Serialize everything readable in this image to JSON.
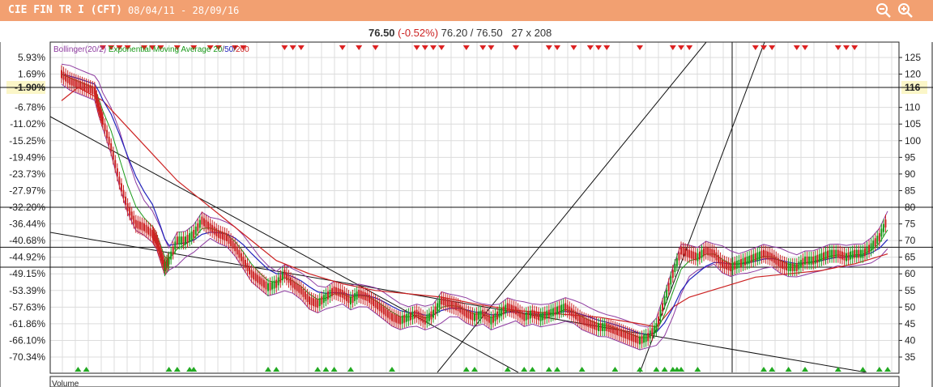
{
  "window": {
    "title": "CIE FIN TR I (CFT)",
    "date_range": "08/04/11 - 28/09/16",
    "zoom_out_icon": "zoom-out-icon",
    "zoom_in_icon": "zoom-in-icon"
  },
  "quote": {
    "last": "76.50",
    "change": "(-0.52%)",
    "bid_ask": "76.20 / 76.50",
    "size": "27 x 208"
  },
  "colors": {
    "titlebar": "#f2a071",
    "price_up": "#1a9a1a",
    "price_down": "#cc2222",
    "bollinger": "#8e3aa0",
    "ema20": "#1a9a1a",
    "ema50": "#2222bb",
    "ema200": "#cc2222",
    "up_marker": "#22aa22",
    "down_marker": "#dd2222"
  },
  "chart_data": {
    "type": "line",
    "legend": {
      "bollinger": "Bollinger(20/2)",
      "ema_prefix": "Exponential Moving Average",
      "ema_20": "20",
      "ema_50": "50",
      "ema_200": "200"
    },
    "y_right_ticks": [
      "125",
      "120",
      "116",
      "110",
      "105",
      "100",
      "95",
      "90",
      "85",
      "80",
      "75",
      "70",
      "65",
      "60",
      "55",
      "50",
      "45",
      "40",
      "35"
    ],
    "y_right_values": [
      125,
      120,
      116,
      110,
      105,
      100,
      95,
      90,
      85,
      80,
      75,
      70,
      65,
      60,
      55,
      50,
      45,
      40,
      35
    ],
    "y_right_highlight": "116",
    "y_left_ticks": [
      "5.93%",
      "1.69%",
      "-1.90%",
      "-6.78%",
      "-11.02%",
      "-15.25%",
      "-19.49%",
      "-23.73%",
      "-27.97%",
      "-32.20%",
      "-36.44%",
      "-40.68%",
      "-44.92%",
      "-49.15%",
      "-53.39%",
      "-57.63%",
      "-61.86%",
      "-66.10%",
      "-70.34%"
    ],
    "y_left_highlight": "-1.90%",
    "ylim": [
      30,
      130
    ],
    "horizontal_lines": [
      116,
      80,
      68,
      62
    ],
    "price_path": [
      [
        0,
        120
      ],
      [
        0.01,
        118
      ],
      [
        0.02,
        117
      ],
      [
        0.03,
        116
      ],
      [
        0.04,
        115
      ],
      [
        0.045,
        110
      ],
      [
        0.05,
        106
      ],
      [
        0.06,
        98
      ],
      [
        0.07,
        88
      ],
      [
        0.08,
        80
      ],
      [
        0.09,
        75
      ],
      [
        0.1,
        74
      ],
      [
        0.11,
        72
      ],
      [
        0.115,
        70
      ],
      [
        0.12,
        66
      ],
      [
        0.125,
        62
      ],
      [
        0.13,
        64
      ],
      [
        0.14,
        70
      ],
      [
        0.15,
        70
      ],
      [
        0.16,
        72
      ],
      [
        0.17,
        76
      ],
      [
        0.18,
        74
      ],
      [
        0.19,
        72
      ],
      [
        0.2,
        71
      ],
      [
        0.21,
        68
      ],
      [
        0.22,
        64
      ],
      [
        0.23,
        60
      ],
      [
        0.24,
        58
      ],
      [
        0.25,
        56
      ],
      [
        0.26,
        57
      ],
      [
        0.27,
        60
      ],
      [
        0.28,
        57
      ],
      [
        0.29,
        55
      ],
      [
        0.3,
        52
      ],
      [
        0.31,
        51
      ],
      [
        0.32,
        53
      ],
      [
        0.33,
        55
      ],
      [
        0.34,
        54
      ],
      [
        0.35,
        52
      ],
      [
        0.36,
        54
      ],
      [
        0.37,
        53
      ],
      [
        0.38,
        51
      ],
      [
        0.39,
        49
      ],
      [
        0.4,
        47
      ],
      [
        0.41,
        46
      ],
      [
        0.42,
        47
      ],
      [
        0.43,
        48
      ],
      [
        0.44,
        46
      ],
      [
        0.45,
        48
      ],
      [
        0.46,
        52
      ],
      [
        0.47,
        51
      ],
      [
        0.48,
        50
      ],
      [
        0.49,
        48
      ],
      [
        0.5,
        47
      ],
      [
        0.51,
        48
      ],
      [
        0.52,
        46
      ],
      [
        0.53,
        48
      ],
      [
        0.54,
        50
      ],
      [
        0.55,
        49
      ],
      [
        0.56,
        47
      ],
      [
        0.57,
        48
      ],
      [
        0.58,
        47
      ],
      [
        0.59,
        48
      ],
      [
        0.6,
        49
      ],
      [
        0.61,
        50
      ],
      [
        0.62,
        48
      ],
      [
        0.63,
        46
      ],
      [
        0.64,
        45
      ],
      [
        0.65,
        44
      ],
      [
        0.66,
        44
      ],
      [
        0.67,
        43
      ],
      [
        0.68,
        42
      ],
      [
        0.69,
        41
      ],
      [
        0.7,
        40
      ],
      [
        0.71,
        41
      ],
      [
        0.72,
        44
      ],
      [
        0.73,
        52
      ],
      [
        0.74,
        60
      ],
      [
        0.75,
        67
      ],
      [
        0.76,
        66
      ],
      [
        0.77,
        65
      ],
      [
        0.78,
        67
      ],
      [
        0.79,
        66
      ],
      [
        0.8,
        63
      ],
      [
        0.81,
        62
      ],
      [
        0.82,
        63
      ],
      [
        0.83,
        64
      ],
      [
        0.84,
        65
      ],
      [
        0.85,
        66
      ],
      [
        0.86,
        65
      ],
      [
        0.87,
        63
      ],
      [
        0.88,
        62
      ],
      [
        0.89,
        62
      ],
      [
        0.9,
        64
      ],
      [
        0.91,
        64
      ],
      [
        0.92,
        65
      ],
      [
        0.93,
        66
      ],
      [
        0.94,
        66
      ],
      [
        0.95,
        65
      ],
      [
        0.96,
        66
      ],
      [
        0.97,
        66
      ],
      [
        0.98,
        68
      ],
      [
        0.99,
        71
      ],
      [
        1.0,
        76.5
      ]
    ],
    "ema200_path": [
      [
        0,
        112
      ],
      [
        0.02,
        116
      ],
      [
        0.05,
        112
      ],
      [
        0.08,
        104
      ],
      [
        0.11,
        96
      ],
      [
        0.14,
        88
      ],
      [
        0.17,
        82
      ],
      [
        0.2,
        76
      ],
      [
        0.23,
        70
      ],
      [
        0.26,
        64
      ],
      [
        0.3,
        60
      ],
      [
        0.34,
        57
      ],
      [
        0.38,
        55
      ],
      [
        0.42,
        54
      ],
      [
        0.46,
        53
      ],
      [
        0.5,
        51
      ],
      [
        0.55,
        49
      ],
      [
        0.6,
        48
      ],
      [
        0.65,
        47
      ],
      [
        0.7,
        45
      ],
      [
        0.72,
        44
      ],
      [
        0.74,
        50
      ],
      [
        0.76,
        53
      ],
      [
        0.8,
        56
      ],
      [
        0.84,
        59
      ],
      [
        0.88,
        60
      ],
      [
        0.92,
        61
      ],
      [
        0.96,
        63
      ],
      [
        1.0,
        66
      ]
    ],
    "up_markers_x": [
      0.02,
      0.03,
      0.13,
      0.14,
      0.155,
      0.16,
      0.25,
      0.26,
      0.31,
      0.32,
      0.33,
      0.35,
      0.4,
      0.49,
      0.5,
      0.54,
      0.56,
      0.57,
      0.59,
      0.6,
      0.63,
      0.67,
      0.7,
      0.72,
      0.73,
      0.74,
      0.745,
      0.75,
      0.77,
      0.85,
      0.86,
      0.88,
      0.9,
      0.94,
      0.97,
      0.99,
      1.0
    ],
    "down_markers_x": [
      0.05,
      0.06,
      0.07,
      0.08,
      0.1,
      0.11,
      0.12,
      0.14,
      0.16,
      0.18,
      0.19,
      0.21,
      0.22,
      0.27,
      0.28,
      0.29,
      0.34,
      0.36,
      0.38,
      0.43,
      0.44,
      0.45,
      0.46,
      0.49,
      0.51,
      0.52,
      0.55,
      0.59,
      0.6,
      0.62,
      0.64,
      0.65,
      0.66,
      0.7,
      0.74,
      0.75,
      0.76,
      0.84,
      0.85,
      0.86,
      0.89,
      0.9,
      0.94,
      0.95,
      0.96
    ],
    "volume_label": "Volume"
  }
}
